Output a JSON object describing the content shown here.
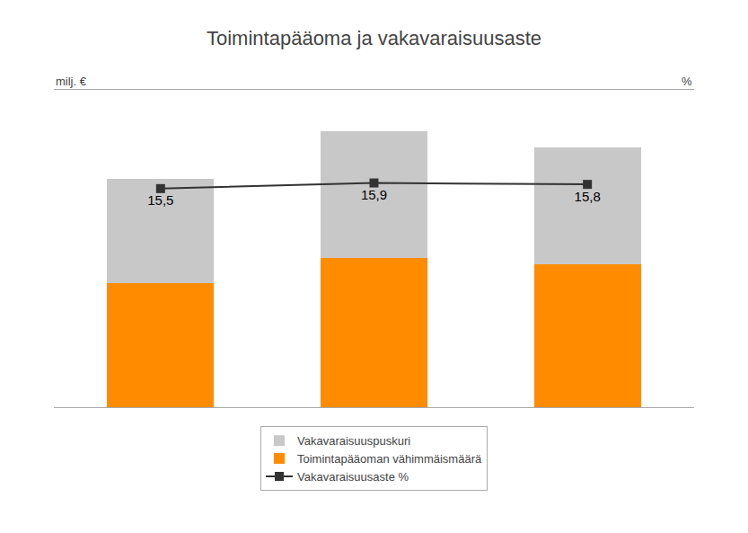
{
  "chart_data": {
    "type": "bar",
    "title": "Toimintapääoma ja vakavaraisuusaste",
    "categories": [
      null,
      null,
      null
    ],
    "stacked": true,
    "grid": false,
    "tick_labels": false,
    "legend": "bottom",
    "ylabel": "milj. €",
    "y2label": "%",
    "ylim": [
      0,
      500
    ],
    "y2lim": [
      0.0,
      22.5
    ],
    "series": [
      {
        "name": "Toimintapääoman vähimmäismäärä",
        "type": "bar",
        "color": "#FF8C00",
        "values": [
          195,
          235,
          225
        ]
      },
      {
        "name": "Vakavaraisuuspuskuri",
        "type": "bar",
        "color": "#C8C8C8",
        "values": [
          165,
          200,
          185
        ]
      },
      {
        "name": "Vakavaraisuusaste %",
        "type": "line",
        "axis": "y2",
        "color": "#333333",
        "marker": "square",
        "line_style": "solid",
        "data_labels": true,
        "values": [
          15.5,
          15.9,
          15.8
        ],
        "value_labels": [
          "15,5",
          "15,9",
          "15,8"
        ]
      }
    ]
  }
}
